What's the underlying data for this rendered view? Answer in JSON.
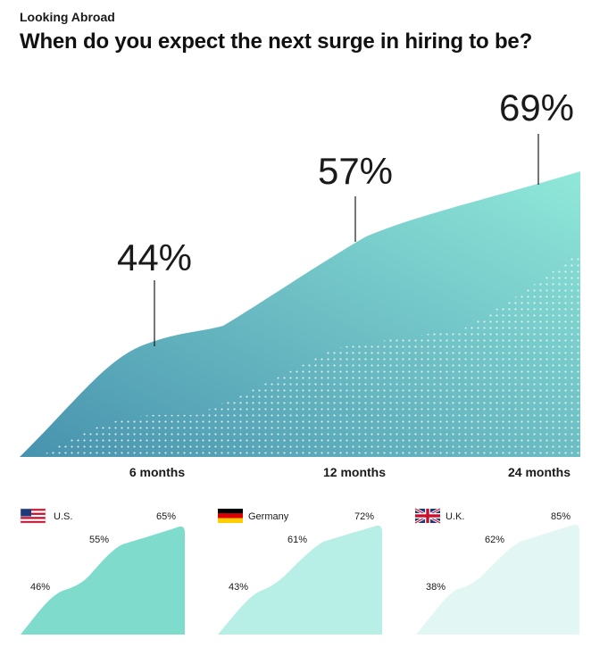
{
  "header": {
    "eyebrow": "Looking Abroad",
    "title": "When do you expect the next surge in hiring to be?"
  },
  "chart_data": [
    {
      "type": "area",
      "categories": [
        "6 months",
        "12 months",
        "24 months"
      ],
      "series": [
        {
          "values": [
            44,
            57,
            69
          ]
        }
      ],
      "value_labels": [
        "44%",
        "57%",
        "69%"
      ],
      "colors": {
        "gradient_start": "#4a9ab3",
        "gradient_end": "#8de6d8",
        "dots": "#ffffff"
      }
    },
    {
      "type": "area",
      "series": [
        {
          "name": "U.S.",
          "values": [
            46,
            55,
            65
          ]
        }
      ],
      "value_labels": [
        "46%",
        "55%",
        "65%"
      ],
      "icon": "us-flag-icon",
      "color": "#7fdccd"
    },
    {
      "type": "area",
      "series": [
        {
          "name": "Germany",
          "values": [
            43,
            61,
            72
          ]
        }
      ],
      "value_labels": [
        "43%",
        "61%",
        "72%"
      ],
      "icon": "germany-flag-icon",
      "color": "#b7eee5"
    },
    {
      "type": "area",
      "series": [
        {
          "name": "U.K.",
          "values": [
            38,
            62,
            85
          ]
        }
      ],
      "value_labels": [
        "38%",
        "62%",
        "85%"
      ],
      "icon": "uk-flag-icon",
      "color": "#e2f7f3"
    }
  ]
}
